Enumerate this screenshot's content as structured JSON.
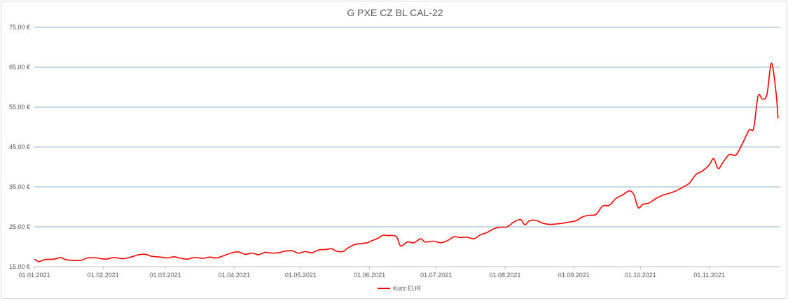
{
  "chart_data": {
    "type": "line",
    "title": "G PXE CZ BL CAL-22",
    "xlabel": "",
    "ylabel": "",
    "ylim": [
      15,
      75
    ],
    "y_ticks": [
      "15,00 €",
      "25,00 €",
      "35,00 €",
      "45,00 €",
      "55,00 €",
      "65,00 €",
      "75,00 €"
    ],
    "y_tick_values": [
      15,
      25,
      35,
      45,
      55,
      65,
      75
    ],
    "x_range": [
      "2021-01-01",
      "2021-12-03"
    ],
    "x_ticks": [
      "01.01.2021",
      "01.02.2021",
      "01.03.2021",
      "01.04.2021",
      "01.05.2021",
      "01.06.2021",
      "01.07.2021",
      "01.08.2021",
      "01.09.2021",
      "01.10.2021",
      "01.11.2021"
    ],
    "x_tick_dates": [
      "2021-01-01",
      "2021-02-01",
      "2021-03-01",
      "2021-04-01",
      "2021-05-01",
      "2021-06-01",
      "2021-07-01",
      "2021-08-01",
      "2021-09-01",
      "2021-10-01",
      "2021-11-01"
    ],
    "grid": "horizontal",
    "legend_position": "bottom",
    "colors": {
      "series": "#ff0000",
      "grid": "#8fb4cc",
      "axis": "#bfbfbf"
    },
    "series": [
      {
        "name": "Kurz EUR",
        "points": [
          [
            "2021-01-01",
            16.9
          ],
          [
            "2021-01-03",
            16.3
          ],
          [
            "2021-01-06",
            16.8
          ],
          [
            "2021-01-10",
            16.9
          ],
          [
            "2021-01-13",
            17.3
          ],
          [
            "2021-01-15",
            16.8
          ],
          [
            "2021-01-18",
            16.6
          ],
          [
            "2021-01-22",
            16.6
          ],
          [
            "2021-01-25",
            17.2
          ],
          [
            "2021-01-29",
            17.2
          ],
          [
            "2021-02-02",
            16.9
          ],
          [
            "2021-02-06",
            17.3
          ],
          [
            "2021-02-10",
            17.0
          ],
          [
            "2021-02-14",
            17.5
          ],
          [
            "2021-02-17",
            18.0
          ],
          [
            "2021-02-20",
            18.1
          ],
          [
            "2021-02-23",
            17.6
          ],
          [
            "2021-02-27",
            17.4
          ],
          [
            "2021-03-02",
            17.2
          ],
          [
            "2021-03-05",
            17.5
          ],
          [
            "2021-03-08",
            17.1
          ],
          [
            "2021-03-11",
            16.9
          ],
          [
            "2021-03-14",
            17.3
          ],
          [
            "2021-03-18",
            17.1
          ],
          [
            "2021-03-21",
            17.4
          ],
          [
            "2021-03-24",
            17.2
          ],
          [
            "2021-03-27",
            17.7
          ],
          [
            "2021-03-31",
            18.5
          ],
          [
            "2021-04-03",
            18.7
          ],
          [
            "2021-04-06",
            18.1
          ],
          [
            "2021-04-09",
            18.4
          ],
          [
            "2021-04-12",
            18.0
          ],
          [
            "2021-04-15",
            18.6
          ],
          [
            "2021-04-18",
            18.4
          ],
          [
            "2021-04-21",
            18.5
          ],
          [
            "2021-04-24",
            18.9
          ],
          [
            "2021-04-27",
            19.0
          ],
          [
            "2021-04-30",
            18.4
          ],
          [
            "2021-05-03",
            18.8
          ],
          [
            "2021-05-06",
            18.5
          ],
          [
            "2021-05-09",
            19.2
          ],
          [
            "2021-05-12",
            19.3
          ],
          [
            "2021-05-15",
            19.5
          ],
          [
            "2021-05-17",
            18.9
          ],
          [
            "2021-05-20",
            18.8
          ],
          [
            "2021-05-22",
            19.6
          ],
          [
            "2021-05-25",
            20.5
          ],
          [
            "2021-05-28",
            20.8
          ],
          [
            "2021-05-31",
            21.0
          ],
          [
            "2021-06-02",
            21.5
          ],
          [
            "2021-06-05",
            22.2
          ],
          [
            "2021-06-07",
            22.9
          ],
          [
            "2021-06-09",
            22.8
          ],
          [
            "2021-06-13",
            22.6
          ],
          [
            "2021-06-15",
            20.2
          ],
          [
            "2021-06-18",
            21.2
          ],
          [
            "2021-06-21",
            21.0
          ],
          [
            "2021-06-24",
            22.0
          ],
          [
            "2021-06-26",
            21.2
          ],
          [
            "2021-06-30",
            21.4
          ],
          [
            "2021-07-03",
            21.0
          ],
          [
            "2021-07-06",
            21.5
          ],
          [
            "2021-07-09",
            22.5
          ],
          [
            "2021-07-12",
            22.3
          ],
          [
            "2021-07-15",
            22.4
          ],
          [
            "2021-07-18",
            22.0
          ],
          [
            "2021-07-21",
            23.0
          ],
          [
            "2021-07-24",
            23.6
          ],
          [
            "2021-07-27",
            24.5
          ],
          [
            "2021-07-30",
            24.9
          ],
          [
            "2021-08-02",
            25.0
          ],
          [
            "2021-08-05",
            26.2
          ],
          [
            "2021-08-08",
            26.8
          ],
          [
            "2021-08-10",
            25.5
          ],
          [
            "2021-08-12",
            26.5
          ],
          [
            "2021-08-15",
            26.6
          ],
          [
            "2021-08-18",
            25.9
          ],
          [
            "2021-08-21",
            25.6
          ],
          [
            "2021-08-24",
            25.7
          ],
          [
            "2021-08-27",
            25.9
          ],
          [
            "2021-08-30",
            26.2
          ],
          [
            "2021-09-02",
            26.5
          ],
          [
            "2021-09-05",
            27.5
          ],
          [
            "2021-09-08",
            27.9
          ],
          [
            "2021-09-11",
            28.1
          ],
          [
            "2021-09-14",
            30.2
          ],
          [
            "2021-09-17",
            30.4
          ],
          [
            "2021-09-20",
            32.1
          ],
          [
            "2021-09-23",
            33.0
          ],
          [
            "2021-09-26",
            34.0
          ],
          [
            "2021-09-28",
            33.1
          ],
          [
            "2021-09-30",
            29.8
          ],
          [
            "2021-10-02",
            30.6
          ],
          [
            "2021-10-05",
            31.0
          ],
          [
            "2021-10-08",
            32.1
          ],
          [
            "2021-10-11",
            32.9
          ],
          [
            "2021-10-14",
            33.4
          ],
          [
            "2021-10-17",
            34.0
          ],
          [
            "2021-10-20",
            34.9
          ],
          [
            "2021-10-23",
            35.9
          ],
          [
            "2021-10-26",
            38.1
          ],
          [
            "2021-10-29",
            39.0
          ],
          [
            "2021-11-01",
            40.5
          ],
          [
            "2021-11-03",
            42.1
          ],
          [
            "2021-11-05",
            39.6
          ],
          [
            "2021-11-07",
            41.0
          ],
          [
            "2021-11-10",
            43.1
          ],
          [
            "2021-11-13",
            43.0
          ],
          [
            "2021-11-16",
            45.9
          ],
          [
            "2021-11-19",
            49.3
          ],
          [
            "2021-11-21",
            49.7
          ],
          [
            "2021-11-23",
            57.8
          ],
          [
            "2021-11-25",
            57.0
          ],
          [
            "2021-11-27",
            58.2
          ],
          [
            "2021-11-29",
            66.0
          ],
          [
            "2021-12-01",
            59.0
          ],
          [
            "2021-12-02",
            52.2
          ]
        ]
      }
    ]
  }
}
